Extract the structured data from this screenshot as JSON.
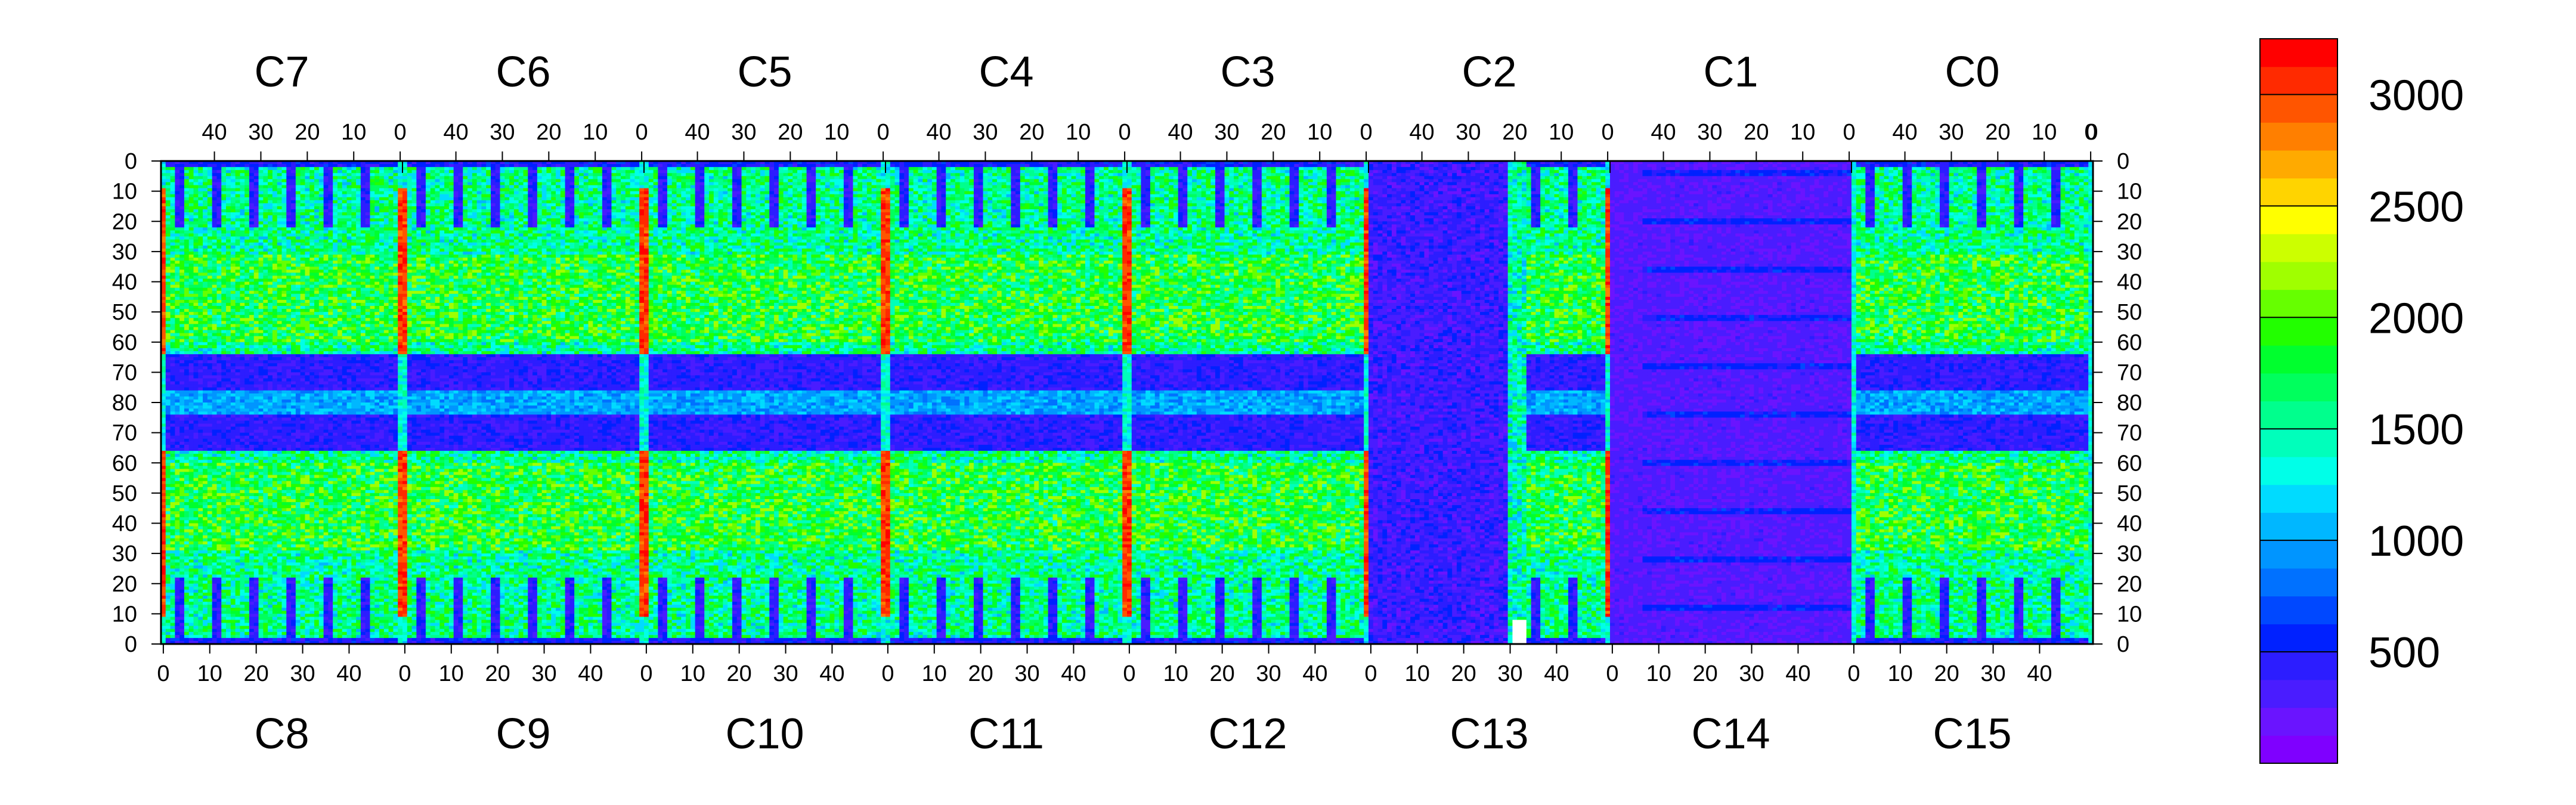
{
  "chart_data": {
    "type": "heatmap",
    "title": "",
    "xlabel": "",
    "ylabel": "",
    "top_chips": [
      "C7",
      "C6",
      "C5",
      "C4",
      "C3",
      "C2",
      "C1",
      "C0"
    ],
    "bottom_chips": [
      "C8",
      "C9",
      "C10",
      "C11",
      "C12",
      "C13",
      "C14",
      "C15"
    ],
    "chip_columns": 52,
    "top_x_ticks": [
      "40",
      "30",
      "20",
      "10",
      "0"
    ],
    "bottom_x_ticks": [
      "0",
      "10",
      "20",
      "30",
      "40"
    ],
    "top_x_tick_values": [
      40,
      30,
      20,
      10,
      0
    ],
    "bottom_x_tick_values": [
      0,
      10,
      20,
      30,
      40
    ],
    "y_ticks": [
      "0",
      "10",
      "20",
      "30",
      "40",
      "50",
      "60",
      "70",
      "80",
      "70",
      "60",
      "50",
      "40",
      "30",
      "20",
      "10",
      "0"
    ],
    "rows_per_half": 80,
    "colorbar": {
      "min": 0,
      "max": 3250,
      "ticks": [
        500,
        1000,
        1500,
        2000,
        2500,
        3000
      ],
      "tick_labels": [
        "500",
        "1000",
        "1500",
        "2000",
        "2500",
        "3000"
      ],
      "colors": [
        "#7f00ff",
        "#6a14ff",
        "#4a1cff",
        "#2c1dff",
        "#0021ff",
        "#0048ff",
        "#0071ff",
        "#0095ff",
        "#00b7ff",
        "#00dbff",
        "#00ffe8",
        "#00ffbb",
        "#00ff8d",
        "#00ff5d",
        "#00ff2e",
        "#22ff00",
        "#66ff00",
        "#a0ff00",
        "#ccff00",
        "#ffff00",
        "#ffd400",
        "#ffaa00",
        "#ff7f00",
        "#ff5500",
        "#ff2a00",
        "#ff0000"
      ]
    },
    "structure": {
      "dark_regions": [
        {
          "chip": "C13",
          "from_col": 12,
          "to_col": 52,
          "note": "mostly minimum value"
        },
        {
          "chip": "C14",
          "from_col": 0,
          "to_col": 52,
          "note": "mostly minimum value"
        },
        {
          "chip": "C2",
          "from_col": 0,
          "to_col": 30,
          "note": "mostly minimum value"
        }
      ],
      "hot_columns": "chip boundary columns 0 near 2800-3200",
      "mid_band": "rows 70-80 low values around 300-800",
      "main_body": "values mostly 1000-2200"
    }
  }
}
